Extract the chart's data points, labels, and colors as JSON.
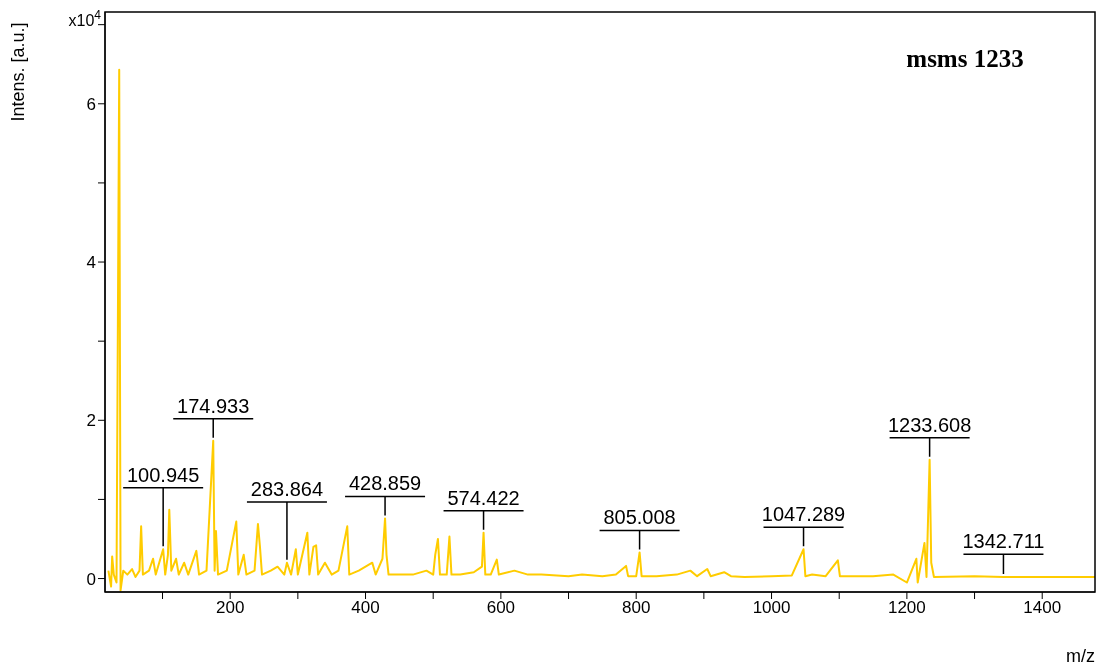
{
  "chart_data": {
    "type": "line",
    "title": "msms 1233",
    "xlabel": "m/z",
    "ylabel": "Intens. [a.u.]",
    "annotations": [
      "x10$^{4}$",
      {
        "text": "100.945",
        "x": 100.945,
        "y": 0.37
      },
      {
        "text": "174.933",
        "x": 174.933,
        "y": 1.74
      },
      {
        "text": "283.864",
        "x": 283.864,
        "y": 0.2
      },
      {
        "text": "428.859",
        "x": 428.859,
        "y": 0.76
      },
      {
        "text": "574.422",
        "x": 574.422,
        "y": 0.58
      },
      {
        "text": "805.008",
        "x": 805.008,
        "y": 0.33
      },
      {
        "text": "1047.289",
        "x": 1047.289,
        "y": 0.37
      },
      {
        "text": "1233.608",
        "x": 1233.608,
        "y": 1.5
      },
      {
        "text": "1342.711",
        "x": 1342.711,
        "y": 0.02
      }
    ],
    "x": [
      20,
      24,
      25.6,
      28,
      32,
      36,
      38,
      42,
      48,
      55,
      60,
      66,
      68.4,
      71,
      80,
      86,
      90,
      100.945,
      104,
      108,
      110,
      113,
      120,
      124,
      132,
      138,
      150,
      154,
      165,
      174.933,
      177,
      179,
      182,
      195,
      209,
      212,
      220,
      224,
      236,
      241,
      244,
      247,
      260,
      270,
      280,
      283.864,
      290,
      297,
      300,
      314,
      317,
      323,
      327,
      330,
      340,
      350,
      360,
      373,
      376,
      390,
      410,
      415,
      425,
      428.859,
      431,
      434,
      450,
      470,
      490,
      500,
      503,
      507,
      510,
      520,
      524,
      527,
      540,
      560,
      572,
      574.422,
      577,
      585,
      594,
      597,
      620,
      640,
      660,
      700,
      720,
      750,
      770,
      785,
      788,
      800,
      805.008,
      808,
      830,
      860,
      880,
      890,
      905,
      910,
      930,
      940,
      960,
      1000,
      1030,
      1047.289,
      1050,
      1060,
      1080,
      1098,
      1101,
      1150,
      1180,
      1200,
      1214,
      1216,
      1226,
      1229,
      1233.608,
      1236,
      1240,
      1300,
      1342.711,
      1400,
      1478
    ],
    "series": [
      {
        "color": "#ffcc00",
        "values": [
          0.1,
          -0.1,
          0.28,
          0.05,
          -0.05,
          6.43,
          -0.15,
          0.1,
          0.05,
          0.12,
          0.02,
          0.1,
          0.66,
          0.05,
          0.1,
          0.25,
          0.05,
          0.37,
          0.05,
          0.3,
          0.87,
          0.1,
          0.25,
          0.05,
          0.2,
          0.05,
          0.35,
          0.05,
          0.1,
          1.74,
          0.1,
          0.6,
          0.05,
          0.1,
          0.72,
          0.05,
          0.3,
          0.05,
          0.1,
          0.69,
          0.4,
          0.05,
          0.1,
          0.15,
          0.05,
          0.2,
          0.05,
          0.37,
          0.05,
          0.58,
          0.05,
          0.4,
          0.42,
          0.05,
          0.2,
          0.05,
          0.1,
          0.66,
          0.05,
          0.1,
          0.2,
          0.05,
          0.25,
          0.76,
          0.3,
          0.05,
          0.05,
          0.05,
          0.1,
          0.05,
          0.3,
          0.5,
          0.05,
          0.05,
          0.53,
          0.05,
          0.05,
          0.08,
          0.15,
          0.58,
          0.05,
          0.05,
          0.24,
          0.05,
          0.1,
          0.05,
          0.05,
          0.03,
          0.05,
          0.03,
          0.05,
          0.16,
          0.03,
          0.03,
          0.33,
          0.03,
          0.03,
          0.05,
          0.1,
          0.03,
          0.12,
          0.03,
          0.08,
          0.03,
          0.02,
          0.03,
          0.04,
          0.37,
          0.03,
          0.05,
          0.03,
          0.23,
          0.03,
          0.03,
          0.05,
          -0.05,
          0.25,
          -0.05,
          0.45,
          0.02,
          1.5,
          0.2,
          0.02,
          0.03,
          0.02,
          0.02,
          0.02
        ]
      }
    ],
    "xlim": [
      15,
      1478
    ],
    "xticks": [
      {
        "value": 100,
        "label": null
      },
      200,
      {
        "value": 300,
        "label": null
      },
      400,
      {
        "value": 500,
        "label": null
      },
      600,
      {
        "value": 700,
        "label": null
      },
      800,
      {
        "value": 900,
        "label": null
      },
      1000,
      {
        "value": 1100,
        "label": null
      },
      1200,
      {
        "value": 1300,
        "label": null
      },
      1400
    ],
    "ylim": [
      -0.17,
      7.16
    ],
    "yticks": [
      0,
      {
        "value": 1,
        "label": null
      },
      2,
      {
        "value": 3,
        "label": null
      },
      4,
      {
        "value": 5,
        "label": null
      },
      6,
      {
        "value": 7,
        "label": null
      }
    ],
    "grid": false,
    "legend": false,
    "marker": "none",
    "line_style": "solid"
  }
}
